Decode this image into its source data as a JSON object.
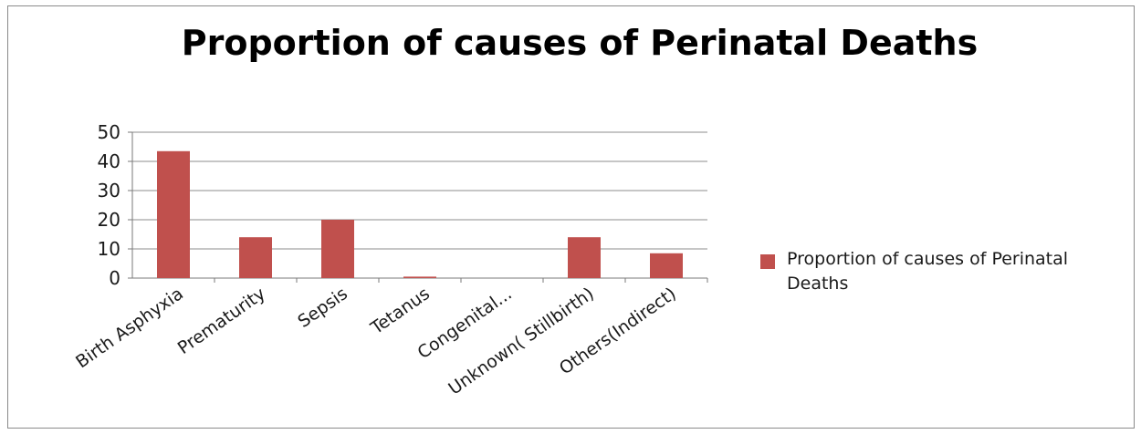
{
  "chart_data": {
    "type": "bar",
    "title": "Proportion of causes of Perinatal Deaths",
    "xlabel": "",
    "ylabel": "",
    "ylim": [
      0,
      50
    ],
    "yticks": [
      0,
      10,
      20,
      30,
      40,
      50
    ],
    "grid": true,
    "legend_position": "right",
    "categories": [
      "Birth Asphyxia",
      "Prematurity",
      "Sepsis",
      "Tetanus",
      "Congenital...",
      "Unknown( Stillbirth)",
      "Others(Indirect)"
    ],
    "series": [
      {
        "name": "Proportion of causes of Perinatal Deaths",
        "color": "#c0504d",
        "values": [
          43.5,
          14,
          20,
          0.5,
          0,
          14,
          8.5
        ]
      }
    ]
  }
}
